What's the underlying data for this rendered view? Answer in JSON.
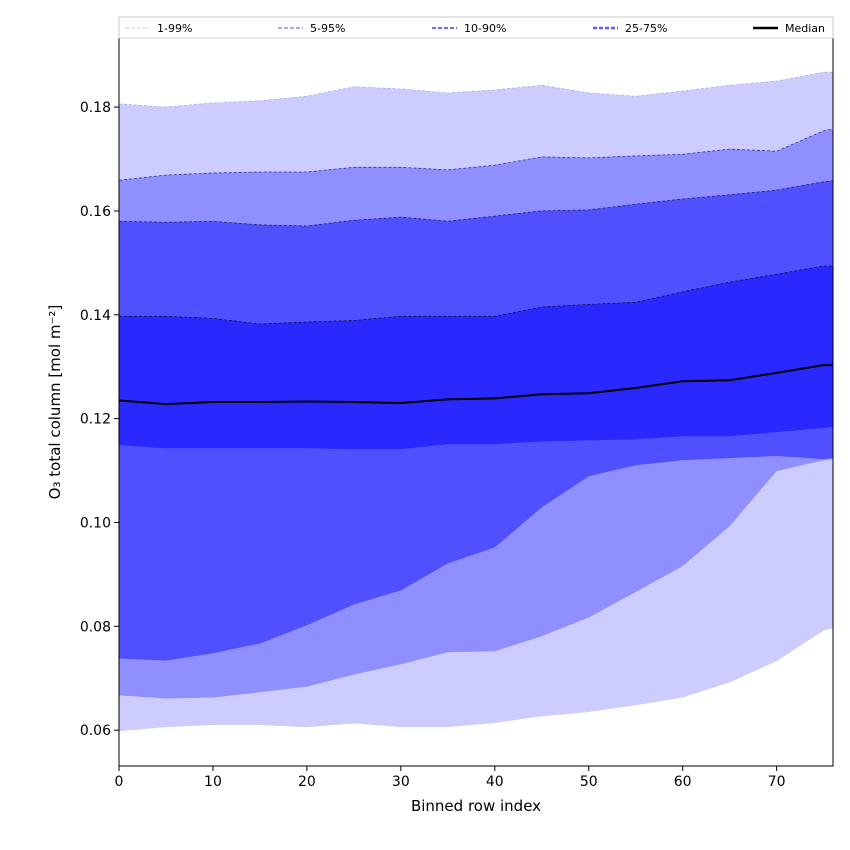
{
  "chart_data": {
    "type": "area",
    "title": "",
    "xlabel": "Binned row index",
    "ylabel": "O₃ total column [mol m⁻²]",
    "xlim": [
      0,
      76
    ],
    "ylim": [
      0.0531,
      0.1933
    ],
    "xticks": [
      0,
      10,
      20,
      30,
      40,
      50,
      60,
      70
    ],
    "yticks": [
      0.06,
      0.08,
      0.1,
      0.12,
      0.14,
      0.16,
      0.18
    ],
    "legend_position": "top",
    "x": [
      0,
      5,
      10,
      15,
      20,
      25,
      30,
      35,
      40,
      45,
      50,
      55,
      60,
      65,
      70,
      75,
      76
    ],
    "bands": [
      {
        "name": "1-99%",
        "color": "#ccccff",
        "line": "#b0b0ee",
        "lower": [
          0.0598,
          0.0606,
          0.061,
          0.061,
          0.0606,
          0.0613,
          0.0606,
          0.0606,
          0.0614,
          0.0627,
          0.0635,
          0.0648,
          0.0663,
          0.0692,
          0.0733,
          0.0792,
          0.0796
        ],
        "upper": [
          0.1806,
          0.18,
          0.1808,
          0.1812,
          0.1821,
          0.1839,
          0.1835,
          0.1827,
          0.1833,
          0.1842,
          0.1827,
          0.1821,
          0.1831,
          0.1842,
          0.185,
          0.1867,
          0.1867
        ]
      },
      {
        "name": "5-95%",
        "color": "#8f8fff",
        "line": "#30309a",
        "lower": [
          0.0667,
          0.0661,
          0.0663,
          0.0673,
          0.0684,
          0.0707,
          0.0727,
          0.075,
          0.0752,
          0.0781,
          0.0817,
          0.0866,
          0.0916,
          0.0993,
          0.1099,
          0.112,
          0.1122
        ],
        "upper": [
          0.1659,
          0.1669,
          0.1673,
          0.1675,
          0.1675,
          0.1684,
          0.1684,
          0.1679,
          0.1688,
          0.1704,
          0.1702,
          0.1706,
          0.1709,
          0.1719,
          0.1715,
          0.1754,
          0.1758
        ]
      },
      {
        "name": "10-90%",
        "color": "#5050ff",
        "line": "#202070",
        "lower": [
          0.0738,
          0.0734,
          0.0748,
          0.0767,
          0.0802,
          0.0842,
          0.0869,
          0.0921,
          0.0952,
          0.1029,
          0.1089,
          0.111,
          0.112,
          0.1124,
          0.1128,
          0.1122,
          0.1124
        ],
        "upper": [
          0.158,
          0.1578,
          0.158,
          0.1573,
          0.1571,
          0.1582,
          0.1588,
          0.158,
          0.159,
          0.16,
          0.1602,
          0.1613,
          0.1623,
          0.1631,
          0.164,
          0.1656,
          0.1658
        ]
      },
      {
        "name": "25-75%",
        "color": "#2828ff",
        "line": "#101040",
        "lower": [
          0.1149,
          0.1143,
          0.1143,
          0.1143,
          0.1143,
          0.1141,
          0.1141,
          0.1151,
          0.1151,
          0.1156,
          0.1158,
          0.116,
          0.1166,
          0.1166,
          0.1174,
          0.1182,
          0.1184
        ],
        "upper": [
          0.1397,
          0.1397,
          0.1393,
          0.1382,
          0.1386,
          0.1389,
          0.1397,
          0.1397,
          0.1397,
          0.1415,
          0.142,
          0.1424,
          0.1444,
          0.1463,
          0.1478,
          0.1494,
          0.1494
        ]
      }
    ],
    "median": {
      "name": "Median",
      "color": "#000000",
      "values": [
        0.1235,
        0.1228,
        0.1232,
        0.1232,
        0.1233,
        0.1232,
        0.123,
        0.1237,
        0.1239,
        0.1247,
        0.1249,
        0.1259,
        0.1272,
        0.1274,
        0.1288,
        0.1303,
        0.1303
      ]
    },
    "legend_colors": [
      "#c8c8f0",
      "#9090d0",
      "#7070e8",
      "#6060ff",
      "#000000"
    ]
  }
}
